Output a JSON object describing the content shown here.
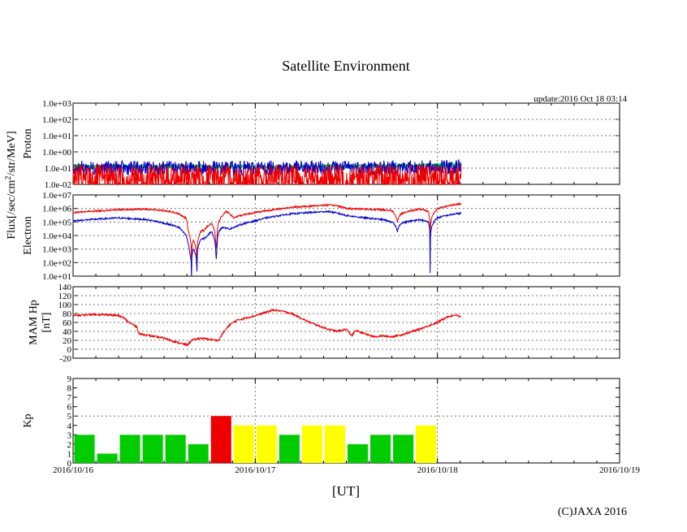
{
  "chart_data": {
    "type": "multi-panel time series",
    "title": "Satellite Environment",
    "update": "update:2016 Oct 18 03:14",
    "copyright": "(C)JAXA 2016",
    "x_axis": {
      "label": "[UT]",
      "ticks": [
        "2016/10/16",
        "2016/10/17",
        "2016/10/18",
        "2016/10/19"
      ],
      "range_days": [
        0,
        3
      ]
    },
    "shared_ylabel": "Flux[/sec/cm2/str/MeV]",
    "colors": {
      "red": "#ee0000",
      "blue": "#0000cc",
      "green": "#00cc00",
      "yellow": "#ffff00",
      "grid": "#777777"
    },
    "panels": [
      {
        "id": "proton",
        "ylabel": "Proton",
        "scale": "log",
        "ylim_exp": [
          -2,
          3
        ],
        "ticks": [
          "1.0e-02",
          "1.0e-01",
          "1.0e+00",
          "1.0e+01",
          "1.0e+02",
          "1.0e+03"
        ],
        "series": [
          {
            "name": "green",
            "color": "#00cc00",
            "keys": [
              [
                0,
                0.13
              ],
              [
                1.0,
                0.12
              ],
              [
                1.5,
                0.13
              ],
              [
                2.0,
                0.15
              ],
              [
                2.13,
                0.17
              ]
            ]
          },
          {
            "name": "blue",
            "color": "#0000cc",
            "keys": [
              [
                0,
                0.1
              ],
              [
                1.0,
                0.1
              ],
              [
                2.0,
                0.11
              ],
              [
                2.13,
                0.12
              ]
            ]
          },
          {
            "name": "red",
            "color": "#ee0000",
            "keys": [
              [
                0,
                0.04
              ],
              [
                1.0,
                0.04
              ],
              [
                2.0,
                0.04
              ],
              [
                2.13,
                0.04
              ]
            ]
          }
        ]
      },
      {
        "id": "electron",
        "ylabel": "Electron",
        "scale": "log",
        "ylim_exp": [
          1,
          7
        ],
        "ticks": [
          "1.0e+01",
          "1.0e+02",
          "1.0e+03",
          "1.0e+04",
          "1.0e+05",
          "1.0e+06",
          "1.0e+07"
        ],
        "series": [
          {
            "name": "red",
            "color": "#ee0000",
            "keys": [
              [
                0,
                500000
              ],
              [
                0.25,
                800000
              ],
              [
                0.4,
                900000
              ],
              [
                0.5,
                700000
              ],
              [
                0.58,
                400000
              ],
              [
                0.6,
                250000
              ],
              [
                0.62,
                200000
              ],
              [
                0.63,
                30000
              ],
              [
                0.64,
                8000
              ],
              [
                0.65,
                15
              ],
              [
                0.66,
                5000
              ],
              [
                0.67,
                2000
              ],
              [
                0.68,
                30
              ],
              [
                0.69,
                8000
              ],
              [
                0.7,
                20000
              ],
              [
                0.72,
                25000
              ],
              [
                0.74,
                50000
              ],
              [
                0.76,
                80000
              ],
              [
                0.77,
                40000
              ],
              [
                0.78,
                10000
              ],
              [
                0.785,
                15
              ],
              [
                0.79,
                5000
              ],
              [
                0.8,
                100000
              ],
              [
                0.82,
                300000
              ],
              [
                0.84,
                600000
              ],
              [
                0.86,
                400000
              ],
              [
                0.88,
                200000
              ],
              [
                0.9,
                250000
              ],
              [
                1.0,
                500000
              ],
              [
                1.1,
                800000
              ],
              [
                1.2,
                1200000
              ],
              [
                1.3,
                1500000
              ],
              [
                1.4,
                1800000
              ],
              [
                1.45,
                1600000
              ],
              [
                1.5,
                1000000
              ],
              [
                1.6,
                900000
              ],
              [
                1.7,
                800000
              ],
              [
                1.75,
                700000
              ],
              [
                1.78,
                100000
              ],
              [
                1.8,
                400000
              ],
              [
                1.9,
                900000
              ],
              [
                1.95,
                600000
              ],
              [
                1.96,
                5000
              ],
              [
                2.0,
                900000
              ],
              [
                2.05,
                1500000
              ],
              [
                2.1,
                2000000
              ],
              [
                2.13,
                2200000
              ]
            ]
          },
          {
            "name": "blue",
            "color": "#0000cc",
            "keys": [
              [
                0,
                120000
              ],
              [
                0.25,
                200000
              ],
              [
                0.4,
                150000
              ],
              [
                0.5,
                80000
              ],
              [
                0.58,
                40000
              ],
              [
                0.6,
                20000
              ],
              [
                0.62,
                10000
              ],
              [
                0.63,
                3000
              ],
              [
                0.64,
                500
              ],
              [
                0.65,
                10
              ],
              [
                0.66,
                1000
              ],
              [
                0.67,
                500
              ],
              [
                0.68,
                20
              ],
              [
                0.69,
                2000
              ],
              [
                0.7,
                5000
              ],
              [
                0.72,
                6000
              ],
              [
                0.74,
                10000
              ],
              [
                0.76,
                20000
              ],
              [
                0.77,
                10000
              ],
              [
                0.78,
                2000
              ],
              [
                0.785,
                10
              ],
              [
                0.79,
                1000
              ],
              [
                0.8,
                20000
              ],
              [
                0.82,
                40000
              ],
              [
                0.86,
                30000
              ],
              [
                0.9,
                50000
              ],
              [
                1.0,
                120000
              ],
              [
                1.1,
                250000
              ],
              [
                1.2,
                400000
              ],
              [
                1.3,
                500000
              ],
              [
                1.4,
                600000
              ],
              [
                1.5,
                300000
              ],
              [
                1.6,
                200000
              ],
              [
                1.7,
                150000
              ],
              [
                1.75,
                100000
              ],
              [
                1.78,
                20000
              ],
              [
                1.8,
                80000
              ],
              [
                1.9,
                150000
              ],
              [
                1.95,
                100000
              ],
              [
                1.96,
                15
              ],
              [
                2.0,
                200000
              ],
              [
                2.05,
                300000
              ],
              [
                2.1,
                400000
              ],
              [
                2.13,
                450000
              ]
            ]
          }
        ]
      },
      {
        "id": "mam",
        "ylabel": "MAM Hp",
        "ylabel2": "[nT]",
        "scale": "linear",
        "ylim": [
          -20,
          140
        ],
        "ticks": [
          "-20",
          "0",
          "20",
          "40",
          "60",
          "80",
          "100",
          "120",
          "140"
        ],
        "series": [
          {
            "name": "red",
            "color": "#ee0000",
            "keys": [
              [
                0,
                75
              ],
              [
                0.1,
                78
              ],
              [
                0.2,
                77
              ],
              [
                0.25,
                75
              ],
              [
                0.28,
                70
              ],
              [
                0.3,
                62
              ],
              [
                0.33,
                55
              ],
              [
                0.35,
                50
              ],
              [
                0.36,
                35
              ],
              [
                0.4,
                32
              ],
              [
                0.45,
                28
              ],
              [
                0.5,
                25
              ],
              [
                0.55,
                18
              ],
              [
                0.6,
                12
              ],
              [
                0.63,
                10
              ],
              [
                0.65,
                20
              ],
              [
                0.7,
                25
              ],
              [
                0.75,
                22
              ],
              [
                0.8,
                20
              ],
              [
                0.82,
                35
              ],
              [
                0.86,
                55
              ],
              [
                0.9,
                65
              ],
              [
                1.0,
                75
              ],
              [
                1.05,
                82
              ],
              [
                1.1,
                88
              ],
              [
                1.15,
                85
              ],
              [
                1.2,
                80
              ],
              [
                1.25,
                70
              ],
              [
                1.3,
                60
              ],
              [
                1.35,
                52
              ],
              [
                1.4,
                45
              ],
              [
                1.45,
                40
              ],
              [
                1.5,
                45
              ],
              [
                1.53,
                30
              ],
              [
                1.55,
                42
              ],
              [
                1.6,
                35
              ],
              [
                1.65,
                28
              ],
              [
                1.7,
                30
              ],
              [
                1.75,
                28
              ],
              [
                1.8,
                32
              ],
              [
                1.85,
                38
              ],
              [
                1.9,
                45
              ],
              [
                2.0,
                60
              ],
              [
                2.05,
                72
              ],
              [
                2.1,
                77
              ],
              [
                2.13,
                72
              ]
            ]
          }
        ]
      },
      {
        "id": "kp",
        "ylabel": "Kp",
        "scale": "linear",
        "ylim": [
          0,
          9
        ],
        "ticks": [
          "0",
          "1",
          "2",
          "3",
          "4",
          "5",
          "6",
          "7",
          "8",
          "9"
        ],
        "bars": [
          3,
          1,
          3,
          3,
          3,
          2,
          5,
          4,
          4,
          3,
          4,
          4,
          2,
          3,
          3,
          4
        ]
      }
    ]
  }
}
